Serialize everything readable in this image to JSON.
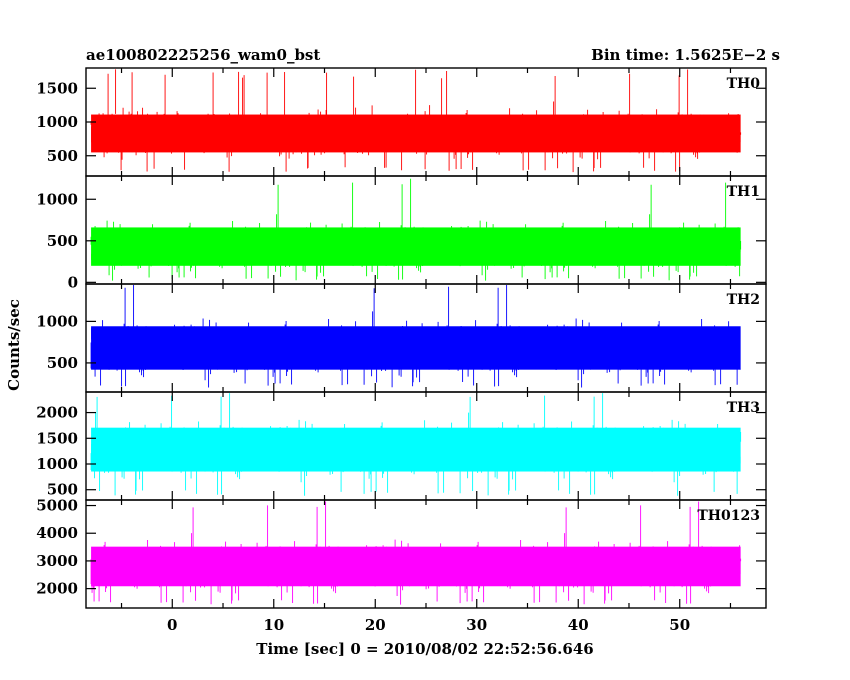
{
  "header": {
    "left_title": "ae100802225256_wam0_bst",
    "right_title": "Bin time: 1.5625E−2 s"
  },
  "chart_data": {
    "type": "line",
    "title": "ae100802225256_wam0_bst",
    "subtitle": "Bin time: 1.5625E−2 s",
    "xlabel": "Time [sec] 0 = 2010/08/02 22:52:56.646",
    "ylabel": "Counts/sec",
    "xlim": [
      -8.5,
      58.5
    ],
    "data_x_range": [
      -8,
      56
    ],
    "x_ticks": [
      0,
      10,
      20,
      30,
      40,
      50
    ],
    "x_tick_labels": [
      "0",
      "10",
      "20",
      "30",
      "40",
      "50"
    ],
    "panels": [
      {
        "name": "TH0",
        "color": "#ff0000",
        "ylim": [
          200,
          1800
        ],
        "y_ticks": [
          500,
          1000,
          1500
        ],
        "y_tick_labels": [
          "500",
          "1000",
          "1500"
        ],
        "mean": 830,
        "typical_low": 330,
        "typical_high": 1350,
        "peak": 1780
      },
      {
        "name": "TH1",
        "color": "#00ff00",
        "ylim": [
          -20,
          1280
        ],
        "y_ticks": [
          0,
          500,
          1000
        ],
        "y_tick_labels": [
          "0",
          "500",
          "1000"
        ],
        "mean": 430,
        "typical_low": 80,
        "typical_high": 920,
        "peak": 1250
      },
      {
        "name": "TH2",
        "color": "#0000ff",
        "ylim": [
          150,
          1450
        ],
        "y_ticks": [
          500,
          1000
        ],
        "y_tick_labels": [
          "500",
          "1000"
        ],
        "mean": 680,
        "typical_low": 280,
        "typical_high": 1230,
        "peak": 1450
      },
      {
        "name": "TH3",
        "color": "#00ffff",
        "ylim": [
          300,
          2400
        ],
        "y_ticks": [
          500,
          1000,
          1500,
          2000
        ],
        "y_tick_labels": [
          "500",
          "1000",
          "1500",
          "2000"
        ],
        "mean": 1280,
        "typical_low": 500,
        "typical_high": 2050,
        "peak": 2380
      },
      {
        "name": "TH0123",
        "color": "#ff00ff",
        "ylim": [
          1300,
          5200
        ],
        "y_ticks": [
          2000,
          3000,
          4000,
          5000
        ],
        "y_tick_labels": [
          "2000",
          "3000",
          "4000",
          "5000"
        ],
        "mean": 2800,
        "typical_low": 1600,
        "typical_high": 4200,
        "peak": 5150
      }
    ],
    "grid": false,
    "legend": "none"
  }
}
